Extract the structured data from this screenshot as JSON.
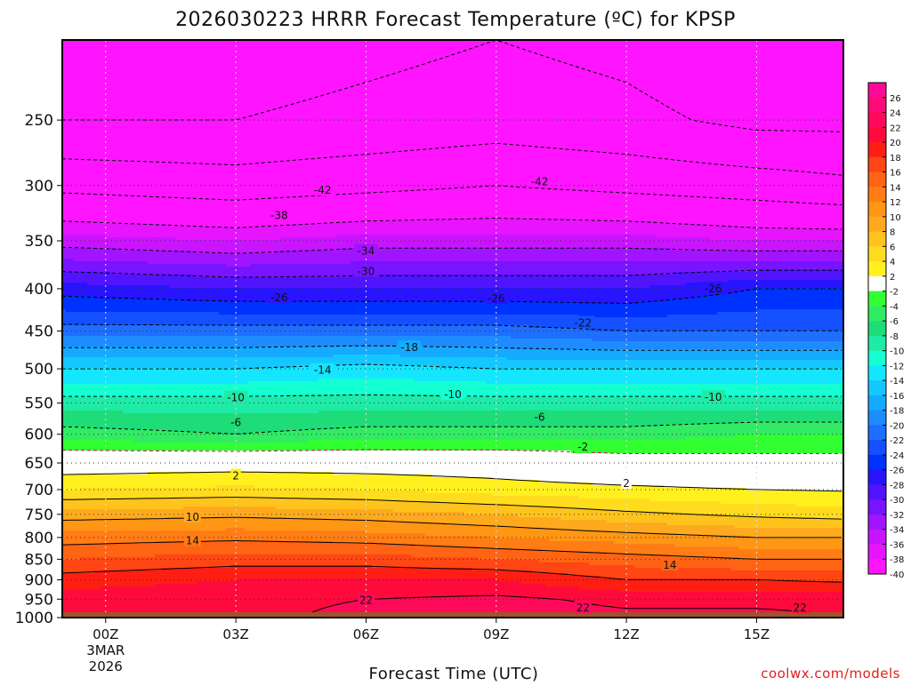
{
  "chart_data": {
    "type": "heatmap",
    "title": "2026030223 HRRR Forecast Temperature (ºC) for KPSP",
    "xlabel": "Forecast Time (UTC)",
    "ylabel": "",
    "credit": "coolwx.com/models",
    "x_ticks": [
      {
        "hour": 0,
        "label": "00Z",
        "sub": [
          "3MAR",
          "2026"
        ]
      },
      {
        "hour": 3,
        "label": "03Z"
      },
      {
        "hour": 6,
        "label": "06Z"
      },
      {
        "hour": 9,
        "label": "09Z"
      },
      {
        "hour": 12,
        "label": "12Z"
      },
      {
        "hour": 15,
        "label": "15Z"
      }
    ],
    "xlim_hours": [
      -1,
      17
    ],
    "y_ticks": [
      250,
      300,
      350,
      400,
      450,
      500,
      550,
      600,
      650,
      700,
      750,
      800,
      850,
      900,
      950,
      1000
    ],
    "ylim_hPa": [
      200,
      1000
    ],
    "y_scale": "log",
    "ground_pressure_hPa": 985,
    "grid": true,
    "colorbar": {
      "position": "right",
      "tick_labels": [
        "26",
        "24",
        "22",
        "20",
        "18",
        "16",
        "14",
        "12",
        "10",
        "8",
        "6",
        "4",
        "2",
        "-2",
        "-4",
        "-6",
        "-8",
        "-10",
        "-12",
        "-14",
        "-16",
        "-18",
        "-20",
        "-22",
        "-24",
        "-26",
        "-28",
        "-30",
        "-32",
        "-34",
        "-36",
        "-38",
        "-40"
      ],
      "colors": [
        "#ff0a96",
        "#ff0a78",
        "#ff0a5a",
        "#ff0a3c",
        "#ff1e14",
        "#ff4614",
        "#ff6414",
        "#ff7d14",
        "#ff9614",
        "#ffaa1e",
        "#ffc31e",
        "#ffdc1e",
        "#fff01e",
        "#ffffff",
        "#32ff32",
        "#32eb64",
        "#1edc78",
        "#1eeba5",
        "#14ffd2",
        "#14e6ff",
        "#14c8ff",
        "#14aaff",
        "#1e8cff",
        "#1e6eff",
        "#1450ff",
        "#0032ff",
        "#2814ff",
        "#5014ff",
        "#7814ff",
        "#a014ff",
        "#c814ff",
        "#e614ff",
        "#ff14ff"
      ]
    },
    "profile_levels_hPa": [
      200,
      250,
      300,
      350,
      400,
      450,
      500,
      550,
      600,
      650,
      700,
      750,
      800,
      850,
      900,
      950,
      1000
    ],
    "profile_times_hours": [
      -1,
      3,
      6,
      9,
      12,
      15,
      17
    ],
    "temperatures_c": [
      [
        -52,
        -52,
        -51,
        -50,
        -51,
        -53,
        -53
      ],
      [
        -50,
        -50,
        -49,
        -48,
        -49,
        -51,
        -51
      ],
      [
        -43,
        -44,
        -43,
        -42,
        -43,
        -44,
        -45
      ],
      [
        -35,
        -36,
        -35,
        -35,
        -35,
        -36,
        -36
      ],
      [
        -27,
        -28,
        -28,
        -28,
        -28,
        -26,
        -26
      ],
      [
        -21,
        -21,
        -21,
        -21,
        -22,
        -22,
        -22
      ],
      [
        -14,
        -14,
        -13,
        -14,
        -14,
        -14,
        -14
      ],
      [
        -9,
        -9,
        -9,
        -9,
        -9,
        -9,
        -9
      ],
      [
        -5,
        -6,
        -5,
        -5,
        -5,
        -4,
        -4
      ],
      [
        0.5,
        0.8,
        0.7,
        0.6,
        -0.5,
        -1,
        -1
      ],
      [
        4,
        4.5,
        4,
        3,
        2.5,
        2,
        1.8
      ],
      [
        9,
        9.5,
        9,
        8,
        6.5,
        5.5,
        5
      ],
      [
        13,
        13.5,
        13,
        12,
        11,
        10,
        10
      ],
      [
        16,
        17,
        17,
        16,
        15,
        14,
        14
      ],
      [
        19,
        20,
        20,
        20,
        18,
        18,
        17.5
      ],
      [
        21,
        21.5,
        22,
        22.5,
        21.5,
        21.5,
        21.5
      ],
      [
        22,
        21.5,
        22.5,
        23,
        22.5,
        22.5,
        22
      ]
    ],
    "contour_labels": [
      {
        "text": "-42",
        "hour": 5,
        "hPa": 304
      },
      {
        "text": "-42",
        "hour": 10,
        "hPa": 297
      },
      {
        "text": "-38",
        "hour": 4,
        "hPa": 326
      },
      {
        "text": "-34",
        "hour": 6,
        "hPa": 360
      },
      {
        "text": "-30",
        "hour": 6,
        "hPa": 381
      },
      {
        "text": "-26",
        "hour": 4,
        "hPa": 410
      },
      {
        "text": "-26",
        "hour": 9,
        "hPa": 411
      },
      {
        "text": "-26",
        "hour": 14,
        "hPa": 400
      },
      {
        "text": "-22",
        "hour": 11,
        "hPa": 440
      },
      {
        "text": "-18",
        "hour": 7,
        "hPa": 471
      },
      {
        "text": "-14",
        "hour": 5,
        "hPa": 502
      },
      {
        "text": "-10",
        "hour": 3,
        "hPa": 542
      },
      {
        "text": "-10",
        "hour": 8,
        "hPa": 537
      },
      {
        "text": "-10",
        "hour": 14,
        "hPa": 541
      },
      {
        "text": "-6",
        "hour": 3,
        "hPa": 581
      },
      {
        "text": "-6",
        "hour": 10,
        "hPa": 572
      },
      {
        "text": "-2",
        "hour": 11,
        "hPa": 622
      },
      {
        "text": "2",
        "hour": 3,
        "hPa": 674
      },
      {
        "text": "2",
        "hour": 12,
        "hPa": 688
      },
      {
        "text": "10",
        "hour": 2,
        "hPa": 756
      },
      {
        "text": "14",
        "hour": 2,
        "hPa": 807
      },
      {
        "text": "14",
        "hour": 13,
        "hPa": 864
      },
      {
        "text": "22",
        "hour": 6,
        "hPa": 953
      },
      {
        "text": "22",
        "hour": 11,
        "hPa": 973
      },
      {
        "text": "22",
        "hour": 16,
        "hPa": 973
      }
    ]
  }
}
